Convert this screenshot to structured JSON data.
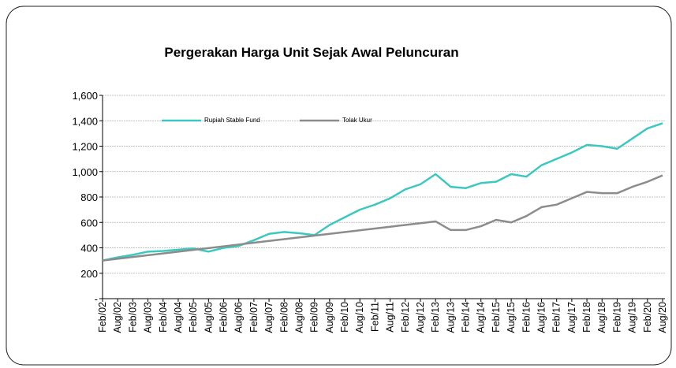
{
  "chart_data": {
    "type": "line",
    "title": "Pergerakan Harga Unit Sejak Awal Peluncuran",
    "categories": [
      "Feb/02",
      "Aug/02",
      "Feb/03",
      "Aug/03",
      "Feb/04",
      "Aug/04",
      "Feb/05",
      "Aug/05",
      "Feb/06",
      "Aug/06",
      "Feb/07",
      "Aug/07",
      "Feb/08",
      "Aug/08",
      "Feb/09",
      "Aug/09",
      "Feb/10",
      "Aug/10",
      "Feb/11",
      "Aug/11",
      "Feb/12",
      "Aug/12",
      "Feb/13",
      "Aug/13",
      "Feb/14",
      "Aug/14",
      "Feb/15",
      "Aug/15",
      "Feb/16",
      "Aug/16",
      "Feb/17",
      "Aug/17",
      "Feb/18",
      "Aug/18",
      "Feb/19",
      "Aug/19",
      "Feb/20",
      "Aug/20"
    ],
    "series": [
      {
        "name": "Rupiah Stable Fund",
        "color": "#3cc8c0",
        "values": [
          300,
          325,
          345,
          370,
          375,
          385,
          395,
          370,
          400,
          415,
          460,
          510,
          525,
          515,
          500,
          580,
          640,
          700,
          740,
          790,
          860,
          900,
          980,
          880,
          870,
          910,
          920,
          980,
          960,
          1050,
          1100,
          1150,
          1210,
          1200,
          1180,
          1260,
          1340,
          1380
        ]
      },
      {
        "name": "Tolak Ukur",
        "color": "#8c8c8c",
        "values": [
          300,
          314,
          328,
          342,
          356,
          370,
          384,
          398,
          412,
          426,
          440,
          454,
          468,
          482,
          496,
          510,
          524,
          538,
          552,
          566,
          580,
          594,
          608,
          540,
          540,
          570,
          620,
          600,
          650,
          720,
          740,
          790,
          840,
          830,
          830,
          880,
          920,
          970
        ]
      }
    ],
    "ylim": [
      0,
      1600
    ],
    "yticks": [
      {
        "value": 0,
        "label": "-"
      },
      200,
      400,
      600,
      800,
      {
        "value": 1000,
        "label": "1,000"
      },
      {
        "value": 1200,
        "label": "1,200"
      },
      {
        "value": 1400,
        "label": "1,400"
      },
      {
        "value": 1600,
        "label": "1,600"
      }
    ],
    "grid": true
  }
}
